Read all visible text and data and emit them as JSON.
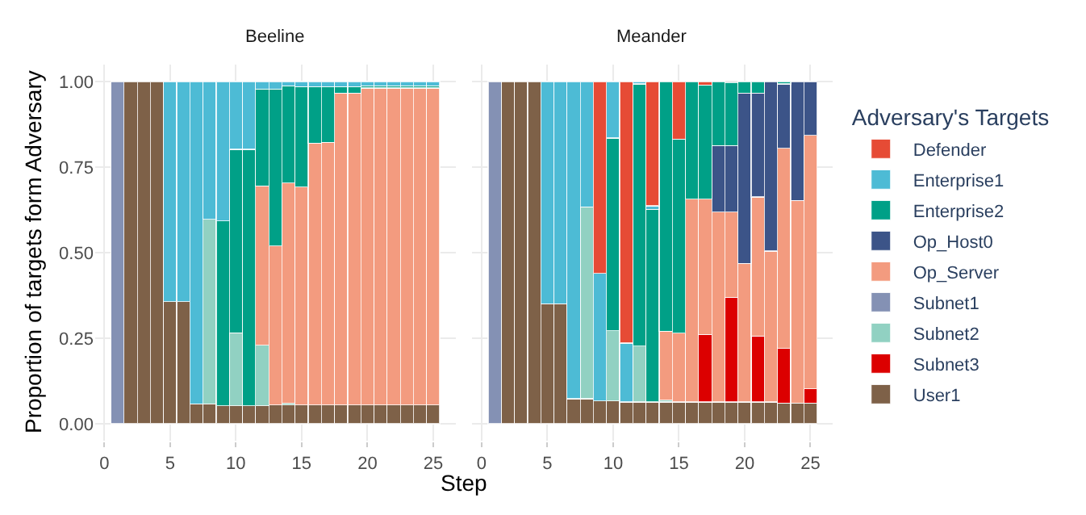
{
  "chart_data": [
    {
      "type": "bar",
      "title": "Beeline",
      "xlabel": "Step",
      "ylabel": "Proportion of targets form Adversary",
      "stacked": true,
      "x": [
        1,
        2,
        3,
        4,
        5,
        6,
        7,
        8,
        9,
        10,
        11,
        12,
        13,
        14,
        15,
        16,
        17,
        18,
        19,
        20,
        21,
        22,
        23,
        24,
        25
      ],
      "xlim": [
        -0.7,
        26.7
      ],
      "xticks": [
        0,
        5,
        10,
        15,
        20,
        25
      ],
      "ylim": [
        -0.05,
        1.05
      ],
      "yticks": [
        {
          "value": 0,
          "label": "0.00"
        },
        {
          "value": 0.25,
          "label": "0.25"
        },
        {
          "value": 0.5,
          "label": "0.50"
        },
        {
          "value": 0.75,
          "label": "0.75"
        },
        {
          "value": 1,
          "label": "1.00"
        }
      ],
      "grid": true,
      "legend": "right",
      "series": [
        {
          "name": "User1",
          "color": "#7e6148",
          "values": [
            null,
            1,
            1,
            1,
            0.357,
            0.357,
            0.058,
            0.058,
            0.053,
            0.053,
            0.053,
            0.053,
            0.055,
            0.055,
            0.055,
            0.055,
            0.055,
            0.055,
            0.055,
            0.055,
            0.055,
            0.055,
            0.055,
            0.055,
            0.055
          ]
        },
        {
          "name": "Subnet2",
          "color": "#91d1c2",
          "values": [
            null,
            null,
            null,
            null,
            null,
            null,
            null,
            0.539,
            null,
            0.213,
            null,
            0.177,
            null,
            0.005,
            null,
            null,
            null,
            null,
            null,
            null,
            null,
            null,
            null,
            null,
            null
          ]
        },
        {
          "name": "Subnet1",
          "color": "#8491b4",
          "values": [
            1,
            null,
            null,
            null,
            null,
            null,
            null,
            null,
            null,
            null,
            null,
            null,
            null,
            null,
            null,
            null,
            null,
            null,
            null,
            null,
            null,
            null,
            null,
            null,
            null
          ]
        },
        {
          "name": "Op_Server",
          "color": "#f39b7f",
          "values": [
            null,
            null,
            null,
            null,
            null,
            null,
            null,
            null,
            null,
            null,
            null,
            0.465,
            0.465,
            0.644,
            0.637,
            0.765,
            0.767,
            0.911,
            0.911,
            0.926,
            0.926,
            0.926,
            0.926,
            0.926,
            0.926
          ]
        },
        {
          "name": "Enterprise2",
          "color": "#00a087",
          "values": [
            null,
            null,
            null,
            null,
            null,
            null,
            null,
            null,
            0.54,
            0.536,
            0.749,
            0.283,
            0.458,
            0.284,
            0.293,
            0.165,
            0.163,
            0.019,
            0.019,
            0.007,
            0.007,
            0.007,
            0.007,
            0.007,
            0.007
          ]
        },
        {
          "name": "Enterprise1",
          "color": "#4dbbd5",
          "values": [
            null,
            null,
            null,
            null,
            0.643,
            0.643,
            0.942,
            0.403,
            0.407,
            0.198,
            0.198,
            0.022,
            0.022,
            0.012,
            0.015,
            0.015,
            0.015,
            0.015,
            0.015,
            0.012,
            0.012,
            0.012,
            0.012,
            0.012,
            0.012
          ]
        }
      ]
    },
    {
      "type": "bar",
      "title": "Meander",
      "stacked": true,
      "x": [
        1,
        2,
        3,
        4,
        5,
        6,
        7,
        8,
        9,
        10,
        11,
        12,
        13,
        14,
        15,
        16,
        17,
        18,
        19,
        20,
        21,
        22,
        23,
        24,
        25
      ],
      "xlim": [
        -0.7,
        26.7
      ],
      "xticks": [
        0,
        5,
        10,
        15,
        20,
        25
      ],
      "ylim": [
        -0.05,
        1.05
      ],
      "yticks": [
        {
          "value": 0,
          "label": null
        },
        {
          "value": 0.25,
          "label": null
        },
        {
          "value": 0.5,
          "label": null
        },
        {
          "value": 0.75,
          "label": null
        },
        {
          "value": 1,
          "label": null
        }
      ],
      "tick_labels": "x",
      "grid": true,
      "legend": "right",
      "legend_title": "Adversary's Targets",
      "series": [
        {
          "name": "User1",
          "color": "#7e6148",
          "values": [
            null,
            1,
            1,
            1,
            0.351,
            0.351,
            0.073,
            0.073,
            0.067,
            0.067,
            0.064,
            0.064,
            0.064,
            0.064,
            0.064,
            0.064,
            0.064,
            0.064,
            0.064,
            0.064,
            0.064,
            0.064,
            0.061,
            0.061,
            0.061
          ]
        },
        {
          "name": "Subnet3",
          "color": "#dc0000",
          "values": [
            null,
            null,
            null,
            null,
            null,
            null,
            null,
            null,
            null,
            null,
            null,
            null,
            null,
            null,
            null,
            null,
            0.197,
            null,
            0.306,
            null,
            0.192,
            null,
            0.159,
            null,
            0.041
          ]
        },
        {
          "name": "Subnet2",
          "color": "#91d1c2",
          "values": [
            null,
            null,
            null,
            null,
            null,
            null,
            null,
            0.561,
            null,
            0.205,
            null,
            0.163,
            null,
            0.005,
            null,
            null,
            null,
            null,
            null,
            null,
            null,
            null,
            null,
            null,
            null
          ]
        },
        {
          "name": "Subnet1",
          "color": "#8491b4",
          "values": [
            1,
            null,
            null,
            null,
            null,
            null,
            null,
            null,
            null,
            null,
            null,
            null,
            null,
            null,
            null,
            null,
            null,
            null,
            null,
            null,
            null,
            null,
            null,
            null,
            null
          ]
        },
        {
          "name": "Op_Server",
          "color": "#f39b7f",
          "values": [
            null,
            null,
            null,
            null,
            null,
            null,
            null,
            null,
            null,
            null,
            null,
            null,
            null,
            0.202,
            0.201,
            0.592,
            0.395,
            0.555,
            0.249,
            0.405,
            0.407,
            0.441,
            0.585,
            0.592,
            0.741
          ]
        },
        {
          "name": "Op_Host0",
          "color": "#3c5488",
          "values": [
            null,
            null,
            null,
            null,
            null,
            null,
            null,
            null,
            null,
            null,
            null,
            null,
            null,
            null,
            null,
            null,
            null,
            0.194,
            0.194,
            0.497,
            0.303,
            0.495,
            0.188,
            0.347,
            0.157
          ]
        },
        {
          "name": "Enterprise2",
          "color": "#00a087",
          "values": [
            null,
            null,
            null,
            null,
            null,
            null,
            null,
            null,
            null,
            0.563,
            null,
            0.766,
            0.563,
            0.729,
            0.567,
            0.344,
            0.334,
            0.187,
            0.184,
            0.034,
            0.034,
            null,
            0.007,
            null,
            null
          ]
        },
        {
          "name": "Enterprise1",
          "color": "#4dbbd5",
          "values": [
            null,
            null,
            null,
            null,
            0.649,
            0.649,
            0.927,
            0.366,
            0.372,
            0.165,
            0.172,
            0.007,
            0.01,
            null,
            null,
            null,
            null,
            null,
            null,
            null,
            null,
            null,
            null,
            null,
            null
          ]
        },
        {
          "name": "Defender",
          "color": "#e64b35",
          "values": [
            null,
            null,
            null,
            null,
            null,
            null,
            null,
            null,
            0.561,
            null,
            0.764,
            null,
            0.363,
            null,
            0.168,
            null,
            0.01,
            null,
            null,
            null,
            null,
            null,
            null,
            null,
            null
          ]
        }
      ]
    }
  ]
}
